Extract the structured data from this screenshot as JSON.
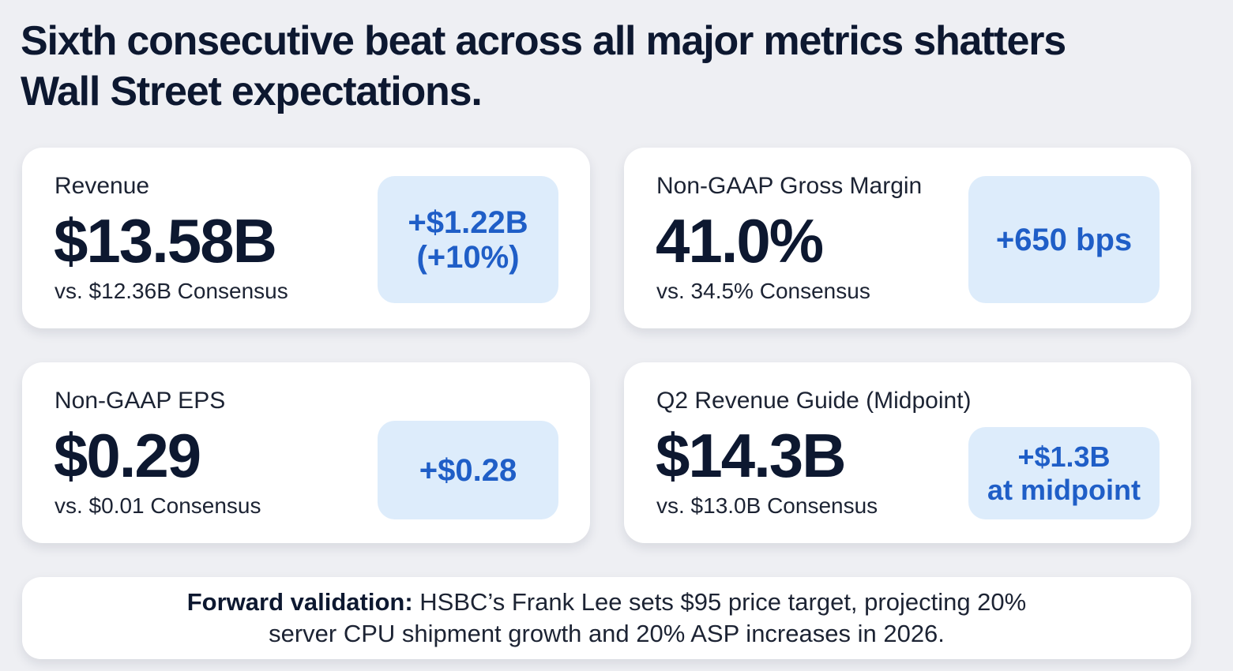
{
  "headline": "Sixth consecutive beat across all major metrics shatters Wall Street expectations.",
  "cards": [
    {
      "label": "Revenue",
      "value": "$13.58B",
      "consensus": "vs. $12.36B Consensus",
      "badge_line1": "+$1.22B",
      "badge_line2": "(+10%)"
    },
    {
      "label": "Non-GAAP Gross Margin",
      "value": "41.0%",
      "consensus": "vs. 34.5% Consensus",
      "badge_line1": "+650 bps"
    },
    {
      "label": "Non-GAAP EPS",
      "value": "$0.29",
      "consensus": "vs. $0.01 Consensus",
      "badge_line1": "+$0.28"
    },
    {
      "label": "Q2 Revenue Guide (Midpoint)",
      "value": "$14.3B",
      "consensus": "vs. $13.0B Consensus",
      "badge_line1": "+$1.3B",
      "badge_line2": "at midpoint"
    }
  ],
  "footer": {
    "lead": "Forward validation:",
    "text": "HSBC’s Frank Lee sets $95 price target, projecting 20% server CPU shipment growth and 20% ASP increases in 2026."
  },
  "colors": {
    "background": "#eeeff3",
    "card": "#ffffff",
    "badge_bg": "#ddecfb",
    "badge_text": "#1f5ec7",
    "heading": "#0d1830"
  }
}
